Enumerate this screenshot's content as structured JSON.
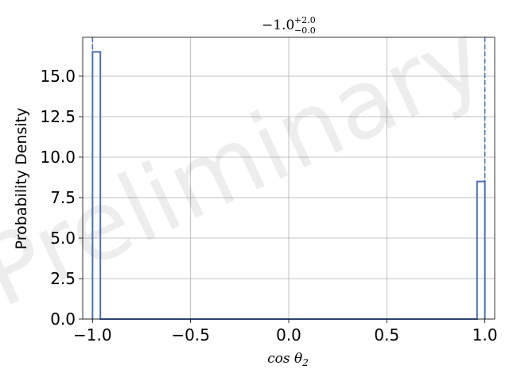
{
  "chart_data": {
    "type": "histogram",
    "title": {
      "main": "−1.0",
      "sup": "+2.0",
      "sub": "−0.0"
    },
    "xlabel": "cos θ",
    "xlabel_sub": "2",
    "ylabel": "Probability Density",
    "xlim": [
      -1.05,
      1.05
    ],
    "ylim": [
      0,
      17.4
    ],
    "xticks": [
      -1.0,
      -0.5,
      0.0,
      0.5,
      1.0
    ],
    "xtick_labels": [
      "−1.0",
      "−0.5",
      "0.0",
      "0.5",
      "1.0"
    ],
    "yticks": [
      0.0,
      2.5,
      5.0,
      7.5,
      10.0,
      12.5,
      15.0
    ],
    "ytick_labels": [
      "0.0",
      "2.5",
      "5.0",
      "7.5",
      "10.0",
      "12.5",
      "15.0"
    ],
    "grid": true,
    "bin_edges": [
      -1.0,
      -0.96,
      0.96,
      1.0
    ],
    "values": [
      16.5,
      0.0,
      8.5
    ],
    "vlines": [
      -1.0,
      1.0
    ],
    "watermark": "Preliminary",
    "colors": {
      "line": "#4c72b0",
      "grid": "#b0b0b0",
      "axes": "#000000"
    }
  }
}
